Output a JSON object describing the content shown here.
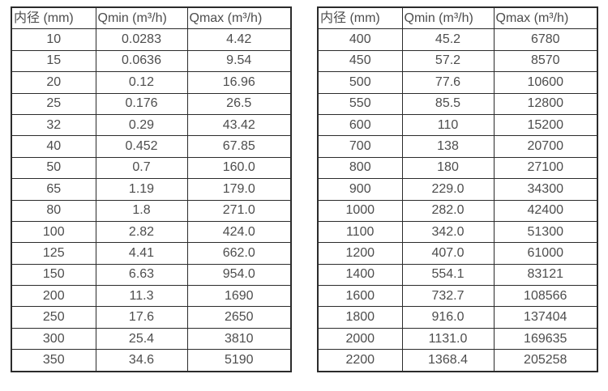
{
  "colors": {
    "background": "#ffffff",
    "border": "#2b2b2b",
    "text": "#4d4d4d"
  },
  "tables": [
    {
      "name": "flow-table-small-diameters",
      "headers": [
        "内径 (mm)",
        "Qmin (m³/h)",
        "Qmax (m³/h)"
      ],
      "rows": [
        [
          "10",
          "0.0283",
          "4.42"
        ],
        [
          "15",
          "0.0636",
          "9.54"
        ],
        [
          "20",
          "0.12",
          "16.96"
        ],
        [
          "25",
          "0.176",
          "26.5"
        ],
        [
          "32",
          "0.29",
          "43.42"
        ],
        [
          "40",
          "0.452",
          "67.85"
        ],
        [
          "50",
          "0.7",
          "160.0"
        ],
        [
          "65",
          "1.19",
          "179.0"
        ],
        [
          "80",
          "1.8",
          "271.0"
        ],
        [
          "100",
          "2.82",
          "424.0"
        ],
        [
          "125",
          "4.41",
          "662.0"
        ],
        [
          "150",
          "6.63",
          "954.0"
        ],
        [
          "200",
          "11.3",
          "1690"
        ],
        [
          "250",
          "17.6",
          "2650"
        ],
        [
          "300",
          "25.4",
          "3810"
        ],
        [
          "350",
          "34.6",
          "5190"
        ]
      ]
    },
    {
      "name": "flow-table-large-diameters",
      "headers": [
        "内径 (mm)",
        "Qmin (m³/h)",
        "Qmax (m³/h)"
      ],
      "rows": [
        [
          "400",
          "45.2",
          "6780"
        ],
        [
          "450",
          "57.2",
          "8570"
        ],
        [
          "500",
          "77.6",
          "10600"
        ],
        [
          "550",
          "85.5",
          "12800"
        ],
        [
          "600",
          "110",
          "15200"
        ],
        [
          "700",
          "138",
          "20700"
        ],
        [
          "800",
          "180",
          "27100"
        ],
        [
          "900",
          "229.0",
          "34300"
        ],
        [
          "1000",
          "282.0",
          "42400"
        ],
        [
          "1100",
          "342.0",
          "51300"
        ],
        [
          "1200",
          "407.0",
          "61000"
        ],
        [
          "1400",
          "554.1",
          "83121"
        ],
        [
          "1600",
          "732.7",
          "108566"
        ],
        [
          "1800",
          "916.0",
          "137404"
        ],
        [
          "2000",
          "1131.0",
          "169635"
        ],
        [
          "2200",
          "1368.4",
          "205258"
        ]
      ]
    }
  ]
}
